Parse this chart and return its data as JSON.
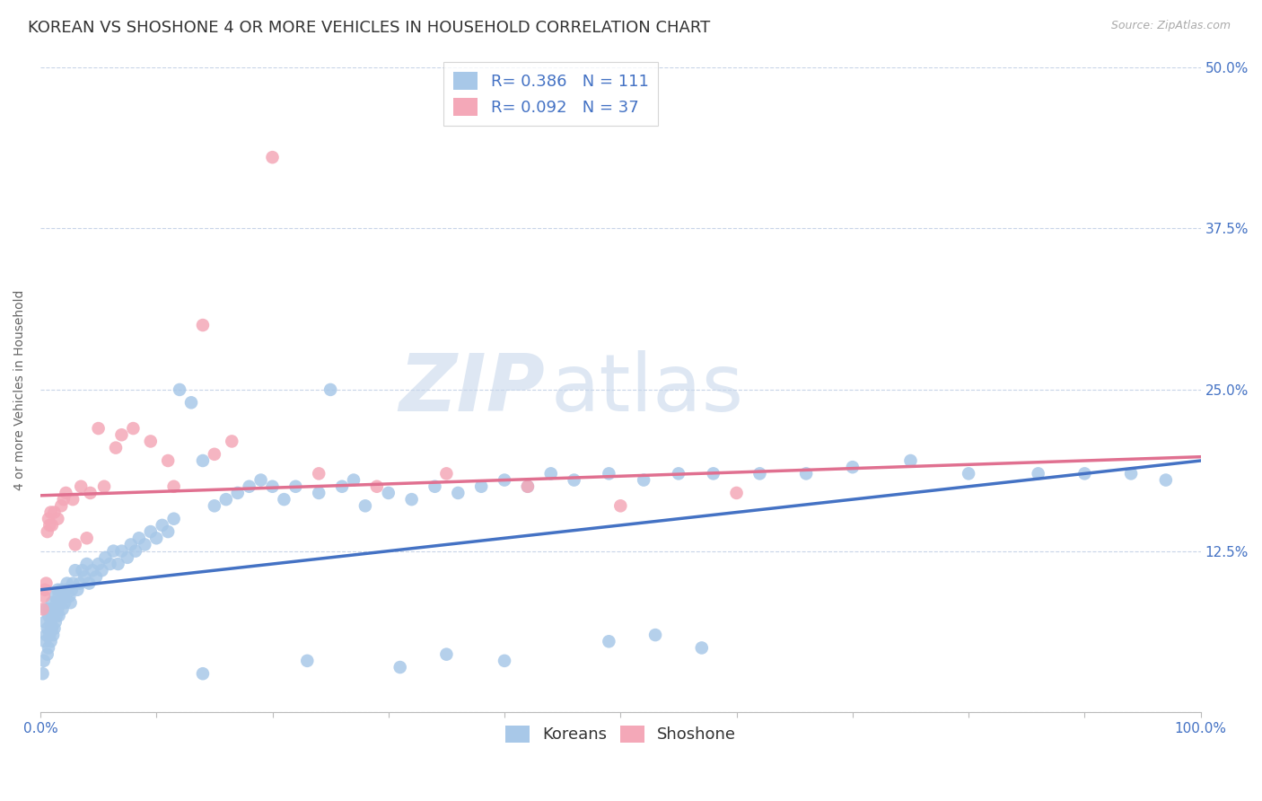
{
  "title": "KOREAN VS SHOSHONE 4 OR MORE VEHICLES IN HOUSEHOLD CORRELATION CHART",
  "source": "Source: ZipAtlas.com",
  "ylabel": "4 or more Vehicles in Household",
  "xlim": [
    0,
    1.0
  ],
  "ylim": [
    0,
    0.5
  ],
  "ytick_positions": [
    0.0,
    0.125,
    0.25,
    0.375,
    0.5
  ],
  "ytick_labels": [
    "",
    "12.5%",
    "25.0%",
    "37.5%",
    "50.0%"
  ],
  "korean_R": 0.386,
  "korean_N": 111,
  "shoshone_R": 0.092,
  "shoshone_N": 37,
  "korean_color": "#a8c8e8",
  "shoshone_color": "#f4a8b8",
  "korean_line_color": "#4472c4",
  "shoshone_line_color": "#e07090",
  "watermark1": "ZIP",
  "watermark2": "atlas",
  "background_color": "#ffffff",
  "grid_color": "#c8d4e8",
  "korean_x": [
    0.002,
    0.003,
    0.004,
    0.004,
    0.005,
    0.005,
    0.006,
    0.006,
    0.007,
    0.007,
    0.008,
    0.008,
    0.009,
    0.009,
    0.01,
    0.01,
    0.011,
    0.011,
    0.012,
    0.012,
    0.013,
    0.013,
    0.014,
    0.014,
    0.015,
    0.015,
    0.016,
    0.016,
    0.017,
    0.018,
    0.019,
    0.02,
    0.021,
    0.022,
    0.023,
    0.025,
    0.026,
    0.027,
    0.028,
    0.03,
    0.032,
    0.034,
    0.036,
    0.038,
    0.04,
    0.042,
    0.045,
    0.048,
    0.05,
    0.053,
    0.056,
    0.06,
    0.063,
    0.067,
    0.07,
    0.075,
    0.078,
    0.082,
    0.085,
    0.09,
    0.095,
    0.1,
    0.105,
    0.11,
    0.115,
    0.12,
    0.13,
    0.14,
    0.15,
    0.16,
    0.17,
    0.18,
    0.19,
    0.2,
    0.21,
    0.22,
    0.24,
    0.25,
    0.26,
    0.27,
    0.28,
    0.3,
    0.32,
    0.34,
    0.36,
    0.38,
    0.4,
    0.42,
    0.44,
    0.46,
    0.49,
    0.52,
    0.55,
    0.58,
    0.62,
    0.66,
    0.7,
    0.75,
    0.8,
    0.86,
    0.9,
    0.94,
    0.97,
    0.49,
    0.53,
    0.57,
    0.14,
    0.23,
    0.31,
    0.35,
    0.4
  ],
  "korean_y": [
    0.03,
    0.04,
    0.055,
    0.07,
    0.06,
    0.08,
    0.045,
    0.065,
    0.05,
    0.075,
    0.06,
    0.08,
    0.055,
    0.07,
    0.065,
    0.085,
    0.06,
    0.075,
    0.065,
    0.08,
    0.07,
    0.09,
    0.075,
    0.085,
    0.08,
    0.095,
    0.075,
    0.09,
    0.085,
    0.095,
    0.08,
    0.09,
    0.085,
    0.095,
    0.1,
    0.09,
    0.085,
    0.095,
    0.1,
    0.11,
    0.095,
    0.1,
    0.11,
    0.105,
    0.115,
    0.1,
    0.11,
    0.105,
    0.115,
    0.11,
    0.12,
    0.115,
    0.125,
    0.115,
    0.125,
    0.12,
    0.13,
    0.125,
    0.135,
    0.13,
    0.14,
    0.135,
    0.145,
    0.14,
    0.15,
    0.25,
    0.24,
    0.195,
    0.16,
    0.165,
    0.17,
    0.175,
    0.18,
    0.175,
    0.165,
    0.175,
    0.17,
    0.25,
    0.175,
    0.18,
    0.16,
    0.17,
    0.165,
    0.175,
    0.17,
    0.175,
    0.18,
    0.175,
    0.185,
    0.18,
    0.185,
    0.18,
    0.185,
    0.185,
    0.185,
    0.185,
    0.19,
    0.195,
    0.185,
    0.185,
    0.185,
    0.185,
    0.18,
    0.055,
    0.06,
    0.05,
    0.03,
    0.04,
    0.035,
    0.045,
    0.04
  ],
  "shoshone_x": [
    0.002,
    0.003,
    0.004,
    0.005,
    0.006,
    0.007,
    0.008,
    0.009,
    0.01,
    0.012,
    0.015,
    0.018,
    0.022,
    0.028,
    0.035,
    0.043,
    0.055,
    0.065,
    0.08,
    0.095,
    0.115,
    0.14,
    0.165,
    0.2,
    0.24,
    0.29,
    0.35,
    0.42,
    0.5,
    0.6,
    0.05,
    0.07,
    0.11,
    0.15,
    0.02,
    0.03,
    0.04
  ],
  "shoshone_y": [
    0.08,
    0.09,
    0.095,
    0.1,
    0.14,
    0.15,
    0.145,
    0.155,
    0.145,
    0.155,
    0.15,
    0.16,
    0.17,
    0.165,
    0.175,
    0.17,
    0.175,
    0.205,
    0.22,
    0.21,
    0.175,
    0.3,
    0.21,
    0.43,
    0.185,
    0.175,
    0.185,
    0.175,
    0.16,
    0.17,
    0.22,
    0.215,
    0.195,
    0.2,
    0.165,
    0.13,
    0.135
  ],
  "legend_korean_label": "Koreans",
  "legend_shoshone_label": "Shoshone",
  "title_fontsize": 13,
  "label_fontsize": 10,
  "tick_fontsize": 11,
  "legend_fontsize": 13
}
